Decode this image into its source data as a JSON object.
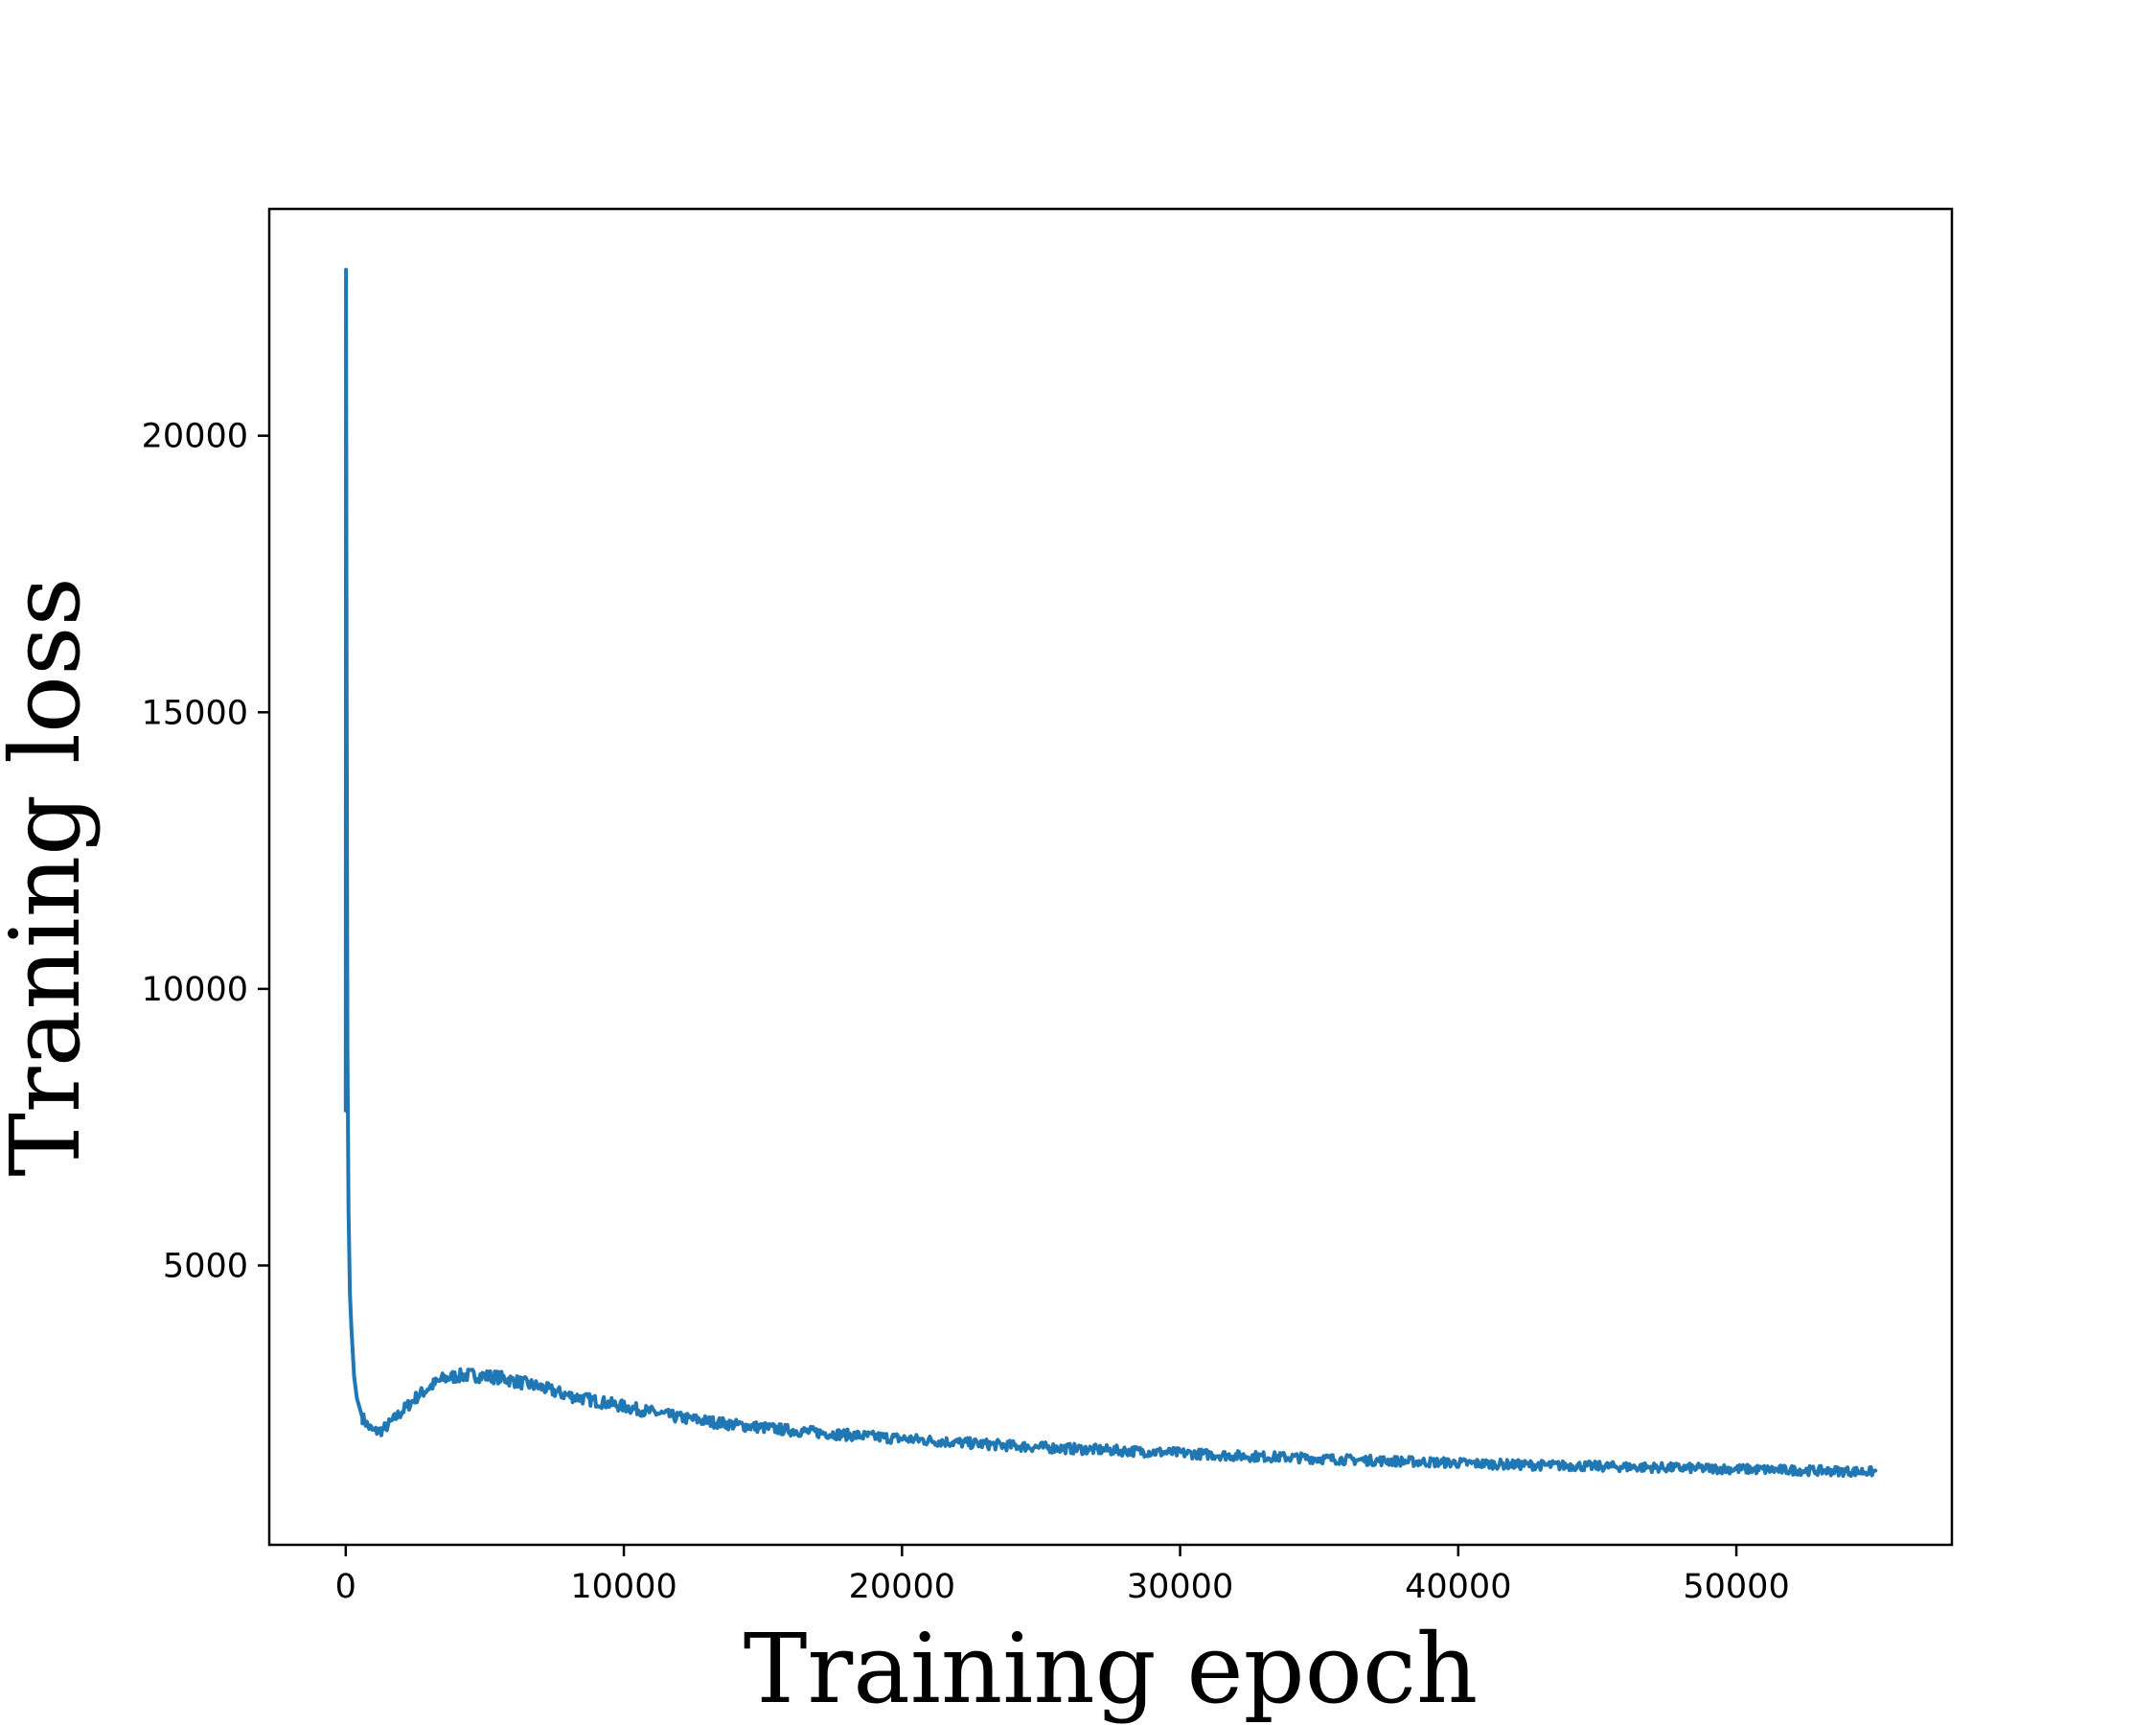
{
  "chart_data": {
    "type": "line",
    "title": "",
    "xlabel": "Training epoch",
    "ylabel": "Traning loss",
    "xlim": [
      -2750,
      57750
    ],
    "ylim": [
      -50,
      24100
    ],
    "x_ticks": [
      0,
      10000,
      20000,
      30000,
      40000,
      50000
    ],
    "x_tick_labels": [
      "0",
      "10000",
      "20000",
      "30000",
      "40000",
      "50000"
    ],
    "y_ticks": [
      5000,
      10000,
      15000,
      20000
    ],
    "y_tick_labels": [
      "5000",
      "10000",
      "15000",
      "20000"
    ],
    "grid": false,
    "legend": "none",
    "series": [
      {
        "color": "#1f77b4",
        "x": [
          0,
          10,
          30,
          60,
          100,
          150,
          200,
          300,
          400,
          600,
          800,
          1000,
          1300,
          1600,
          2000,
          2500,
          3000,
          3500,
          4000,
          4500,
          5000,
          5500,
          6000,
          7000,
          8000,
          9000,
          10000,
          12000,
          14000,
          16000,
          18000,
          20000,
          22000,
          24000,
          26000,
          28000,
          30000,
          32000,
          34000,
          36000,
          38000,
          40000,
          42000,
          44000,
          46000,
          48000,
          50000,
          52000,
          54000,
          55000
        ],
        "y": [
          7800,
          23000,
          16000,
          9000,
          6000,
          4500,
          3900,
          3000,
          2600,
          2250,
          2100,
          2000,
          2020,
          2150,
          2350,
          2600,
          2800,
          2950,
          3000,
          3020,
          3000,
          2980,
          2920,
          2800,
          2650,
          2550,
          2450,
          2250,
          2120,
          2020,
          1940,
          1870,
          1800,
          1740,
          1690,
          1650,
          1610,
          1560,
          1530,
          1490,
          1460,
          1430,
          1400,
          1380,
          1360,
          1340,
          1320,
          1300,
          1280,
          1270
        ]
      }
    ]
  }
}
